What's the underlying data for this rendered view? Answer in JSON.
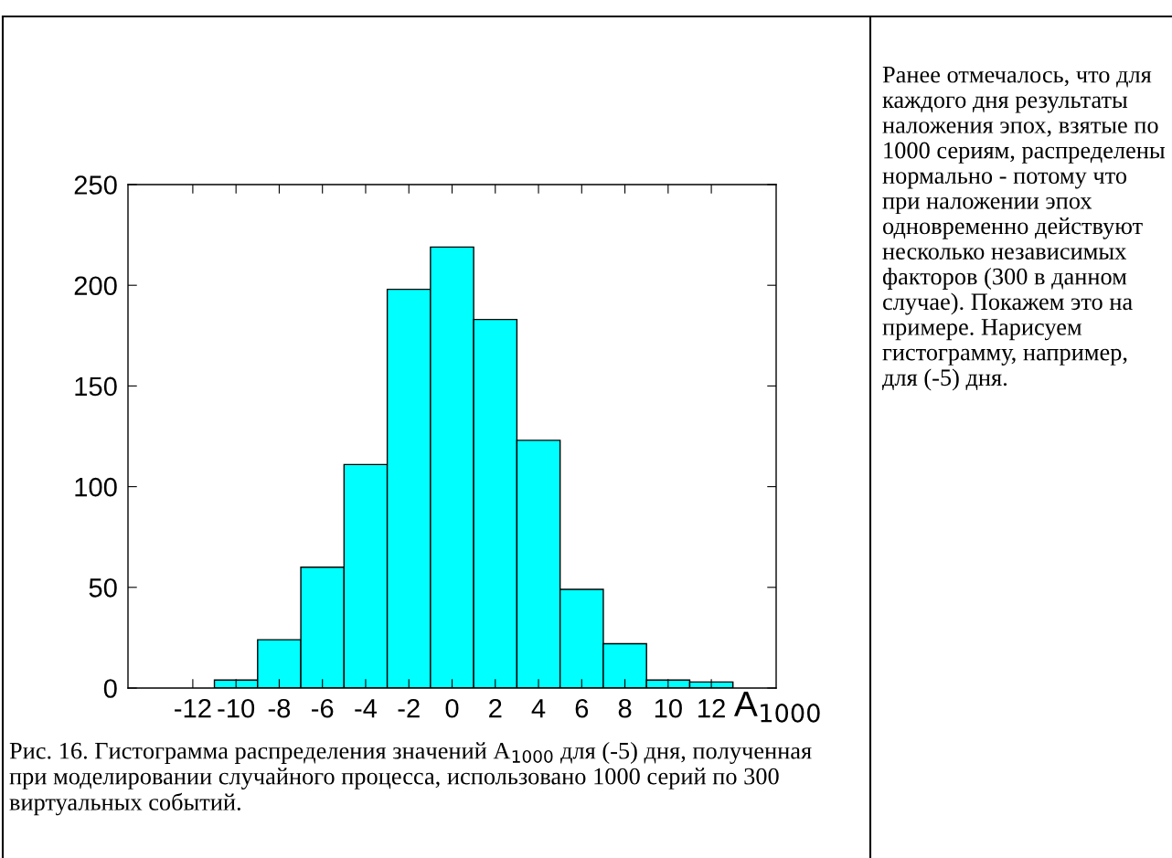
{
  "chart_data": {
    "type": "histogram",
    "bins": [
      -11,
      -9,
      -7,
      -5,
      -3,
      -1,
      1,
      3,
      5,
      7,
      9,
      11,
      13
    ],
    "values": [
      4,
      24,
      60,
      111,
      198,
      219,
      183,
      123,
      49,
      22,
      4,
      3
    ],
    "color": "#00ffff",
    "xlabel": "A$_{1000}$",
    "xlim": [
      -15,
      15
    ],
    "xticks": [
      -12,
      -10,
      -8,
      -6,
      -4,
      -2,
      0,
      2,
      4,
      6,
      8,
      10,
      12
    ],
    "ylim": [
      0,
      250
    ],
    "yticks": [
      0,
      50,
      100,
      150,
      200,
      250
    ],
    "grid": false,
    "annotations": [
      "Рис. 16. Гистограмма распределения значений A$_{1000}$ для (-5) дня, полученная при моделировании случайного процесса, использовано 1000 серий по 300 виртуальных событий.",
      "Ранее отмечалось, что для каждого дня результаты наложения эпох, взятые по 1000 сериям, распределены нормально - потому что при наложении эпох одновременно действуют несколько независимых факторов (300 в данном случае). Покажем это на примере. Нарисуем гистограмму, например, для (-5) дня."
    ]
  }
}
